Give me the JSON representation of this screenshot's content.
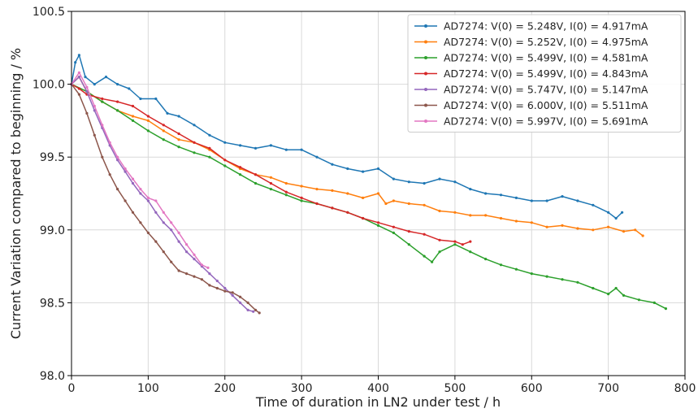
{
  "chart_data": {
    "type": "line",
    "title": "",
    "xlabel": "Time of duration in LN2 under test / h",
    "ylabel": "Current Variation compared to beginning / %",
    "xlim": [
      0,
      800
    ],
    "ylim": [
      98.0,
      100.5
    ],
    "x_ticks": [
      0,
      100,
      200,
      300,
      400,
      500,
      600,
      700,
      800
    ],
    "y_ticks": [
      98.0,
      98.5,
      99.0,
      99.5,
      100.0,
      100.5
    ],
    "grid": true,
    "legend_position": "top-right",
    "series": [
      {
        "name": "AD7274: V(0) = 5.248V, I(0) = 4.917mA",
        "color": "#1f77b4",
        "points": [
          [
            0,
            100.0
          ],
          [
            5,
            100.15
          ],
          [
            10,
            100.2
          ],
          [
            18,
            100.05
          ],
          [
            30,
            100.0
          ],
          [
            45,
            100.05
          ],
          [
            60,
            100.0
          ],
          [
            75,
            99.97
          ],
          [
            90,
            99.9
          ],
          [
            110,
            99.9
          ],
          [
            125,
            99.8
          ],
          [
            140,
            99.78
          ],
          [
            160,
            99.72
          ],
          [
            180,
            99.65
          ],
          [
            200,
            99.6
          ],
          [
            220,
            99.58
          ],
          [
            240,
            99.56
          ],
          [
            260,
            99.58
          ],
          [
            280,
            99.55
          ],
          [
            300,
            99.55
          ],
          [
            320,
            99.5
          ],
          [
            340,
            99.45
          ],
          [
            360,
            99.42
          ],
          [
            380,
            99.4
          ],
          [
            400,
            99.42
          ],
          [
            420,
            99.35
          ],
          [
            440,
            99.33
          ],
          [
            460,
            99.32
          ],
          [
            480,
            99.35
          ],
          [
            500,
            99.33
          ],
          [
            520,
            99.28
          ],
          [
            540,
            99.25
          ],
          [
            560,
            99.24
          ],
          [
            580,
            99.22
          ],
          [
            600,
            99.2
          ],
          [
            620,
            99.2
          ],
          [
            640,
            99.23
          ],
          [
            660,
            99.2
          ],
          [
            680,
            99.17
          ],
          [
            700,
            99.12
          ],
          [
            710,
            99.08
          ],
          [
            718,
            99.12
          ]
        ]
      },
      {
        "name": "AD7274: V(0) = 5.252V, I(0) = 4.975mA",
        "color": "#ff7f0e",
        "points": [
          [
            0,
            100.0
          ],
          [
            10,
            100.05
          ],
          [
            20,
            99.95
          ],
          [
            40,
            99.88
          ],
          [
            60,
            99.82
          ],
          [
            80,
            99.78
          ],
          [
            100,
            99.75
          ],
          [
            120,
            99.68
          ],
          [
            140,
            99.62
          ],
          [
            160,
            99.6
          ],
          [
            180,
            99.55
          ],
          [
            200,
            99.48
          ],
          [
            220,
            99.42
          ],
          [
            240,
            99.38
          ],
          [
            260,
            99.36
          ],
          [
            280,
            99.32
          ],
          [
            300,
            99.3
          ],
          [
            320,
            99.28
          ],
          [
            340,
            99.27
          ],
          [
            360,
            99.25
          ],
          [
            380,
            99.22
          ],
          [
            400,
            99.25
          ],
          [
            410,
            99.18
          ],
          [
            420,
            99.2
          ],
          [
            440,
            99.18
          ],
          [
            460,
            99.17
          ],
          [
            480,
            99.13
          ],
          [
            500,
            99.12
          ],
          [
            520,
            99.1
          ],
          [
            540,
            99.1
          ],
          [
            560,
            99.08
          ],
          [
            580,
            99.06
          ],
          [
            600,
            99.05
          ],
          [
            620,
            99.02
          ],
          [
            640,
            99.03
          ],
          [
            660,
            99.01
          ],
          [
            680,
            99.0
          ],
          [
            700,
            99.02
          ],
          [
            720,
            98.99
          ],
          [
            735,
            99.0
          ],
          [
            745,
            98.96
          ]
        ]
      },
      {
        "name": "AD7274: V(0) = 5.499V, I(0) = 4.581mA",
        "color": "#2ca02c",
        "points": [
          [
            0,
            100.0
          ],
          [
            20,
            99.95
          ],
          [
            40,
            99.88
          ],
          [
            60,
            99.82
          ],
          [
            80,
            99.75
          ],
          [
            100,
            99.68
          ],
          [
            120,
            99.62
          ],
          [
            140,
            99.57
          ],
          [
            160,
            99.53
          ],
          [
            180,
            99.5
          ],
          [
            200,
            99.44
          ],
          [
            220,
            99.38
          ],
          [
            240,
            99.32
          ],
          [
            260,
            99.28
          ],
          [
            280,
            99.24
          ],
          [
            300,
            99.2
          ],
          [
            320,
            99.18
          ],
          [
            340,
            99.15
          ],
          [
            360,
            99.12
          ],
          [
            380,
            99.08
          ],
          [
            400,
            99.03
          ],
          [
            420,
            98.98
          ],
          [
            440,
            98.9
          ],
          [
            460,
            98.82
          ],
          [
            470,
            98.78
          ],
          [
            480,
            98.85
          ],
          [
            500,
            98.9
          ],
          [
            520,
            98.85
          ],
          [
            540,
            98.8
          ],
          [
            560,
            98.76
          ],
          [
            580,
            98.73
          ],
          [
            600,
            98.7
          ],
          [
            620,
            98.68
          ],
          [
            640,
            98.66
          ],
          [
            660,
            98.64
          ],
          [
            680,
            98.6
          ],
          [
            700,
            98.56
          ],
          [
            710,
            98.6
          ],
          [
            720,
            98.55
          ],
          [
            740,
            98.52
          ],
          [
            760,
            98.5
          ],
          [
            775,
            98.46
          ]
        ]
      },
      {
        "name": "AD7274: V(0) = 5.499V, I(0) = 4.843mA",
        "color": "#d62728",
        "points": [
          [
            0,
            100.0
          ],
          [
            10,
            99.97
          ],
          [
            20,
            99.93
          ],
          [
            40,
            99.9
          ],
          [
            60,
            99.88
          ],
          [
            80,
            99.85
          ],
          [
            100,
            99.78
          ],
          [
            120,
            99.72
          ],
          [
            140,
            99.66
          ],
          [
            160,
            99.6
          ],
          [
            180,
            99.56
          ],
          [
            200,
            99.48
          ],
          [
            220,
            99.43
          ],
          [
            240,
            99.38
          ],
          [
            260,
            99.32
          ],
          [
            280,
            99.26
          ],
          [
            300,
            99.22
          ],
          [
            320,
            99.18
          ],
          [
            340,
            99.15
          ],
          [
            360,
            99.12
          ],
          [
            380,
            99.08
          ],
          [
            400,
            99.05
          ],
          [
            420,
            99.02
          ],
          [
            440,
            98.99
          ],
          [
            460,
            98.97
          ],
          [
            480,
            98.93
          ],
          [
            500,
            98.92
          ],
          [
            510,
            98.9
          ],
          [
            520,
            98.92
          ]
        ]
      },
      {
        "name": "AD7274: V(0) = 5.747V, I(0) = 5.147mA",
        "color": "#9467bd",
        "points": [
          [
            0,
            100.0
          ],
          [
            10,
            100.05
          ],
          [
            20,
            99.95
          ],
          [
            30,
            99.82
          ],
          [
            40,
            99.7
          ],
          [
            50,
            99.58
          ],
          [
            60,
            99.48
          ],
          [
            70,
            99.4
          ],
          [
            80,
            99.32
          ],
          [
            90,
            99.25
          ],
          [
            100,
            99.2
          ],
          [
            110,
            99.12
          ],
          [
            120,
            99.05
          ],
          [
            130,
            99.0
          ],
          [
            140,
            98.92
          ],
          [
            150,
            98.85
          ],
          [
            160,
            98.8
          ],
          [
            170,
            98.75
          ],
          [
            180,
            98.7
          ],
          [
            190,
            98.65
          ],
          [
            200,
            98.6
          ],
          [
            210,
            98.55
          ],
          [
            220,
            98.5
          ],
          [
            230,
            98.45
          ],
          [
            237,
            98.44
          ]
        ]
      },
      {
        "name": "AD7274: V(0) = 6.000V, I(0) = 5.511mA",
        "color": "#8c564b",
        "points": [
          [
            0,
            100.0
          ],
          [
            10,
            99.93
          ],
          [
            20,
            99.8
          ],
          [
            30,
            99.65
          ],
          [
            40,
            99.5
          ],
          [
            50,
            99.38
          ],
          [
            60,
            99.28
          ],
          [
            70,
            99.2
          ],
          [
            80,
            99.12
          ],
          [
            90,
            99.05
          ],
          [
            100,
            98.98
          ],
          [
            110,
            98.92
          ],
          [
            120,
            98.85
          ],
          [
            130,
            98.78
          ],
          [
            140,
            98.72
          ],
          [
            150,
            98.7
          ],
          [
            160,
            98.68
          ],
          [
            170,
            98.66
          ],
          [
            180,
            98.62
          ],
          [
            190,
            98.6
          ],
          [
            200,
            98.58
          ],
          [
            210,
            98.57
          ],
          [
            220,
            98.54
          ],
          [
            230,
            98.5
          ],
          [
            240,
            98.45
          ],
          [
            245,
            98.43
          ]
        ]
      },
      {
        "name": "AD7274: V(0) = 5.997V, I(0) = 5.691mA",
        "color": "#e377c2",
        "points": [
          [
            0,
            100.0
          ],
          [
            10,
            100.08
          ],
          [
            20,
            99.98
          ],
          [
            30,
            99.85
          ],
          [
            40,
            99.72
          ],
          [
            50,
            99.6
          ],
          [
            60,
            99.5
          ],
          [
            70,
            99.42
          ],
          [
            80,
            99.35
          ],
          [
            90,
            99.28
          ],
          [
            100,
            99.22
          ],
          [
            110,
            99.2
          ],
          [
            120,
            99.12
          ],
          [
            130,
            99.05
          ],
          [
            140,
            98.98
          ],
          [
            150,
            98.9
          ],
          [
            160,
            98.83
          ],
          [
            170,
            98.76
          ],
          [
            178,
            98.74
          ]
        ]
      }
    ]
  }
}
